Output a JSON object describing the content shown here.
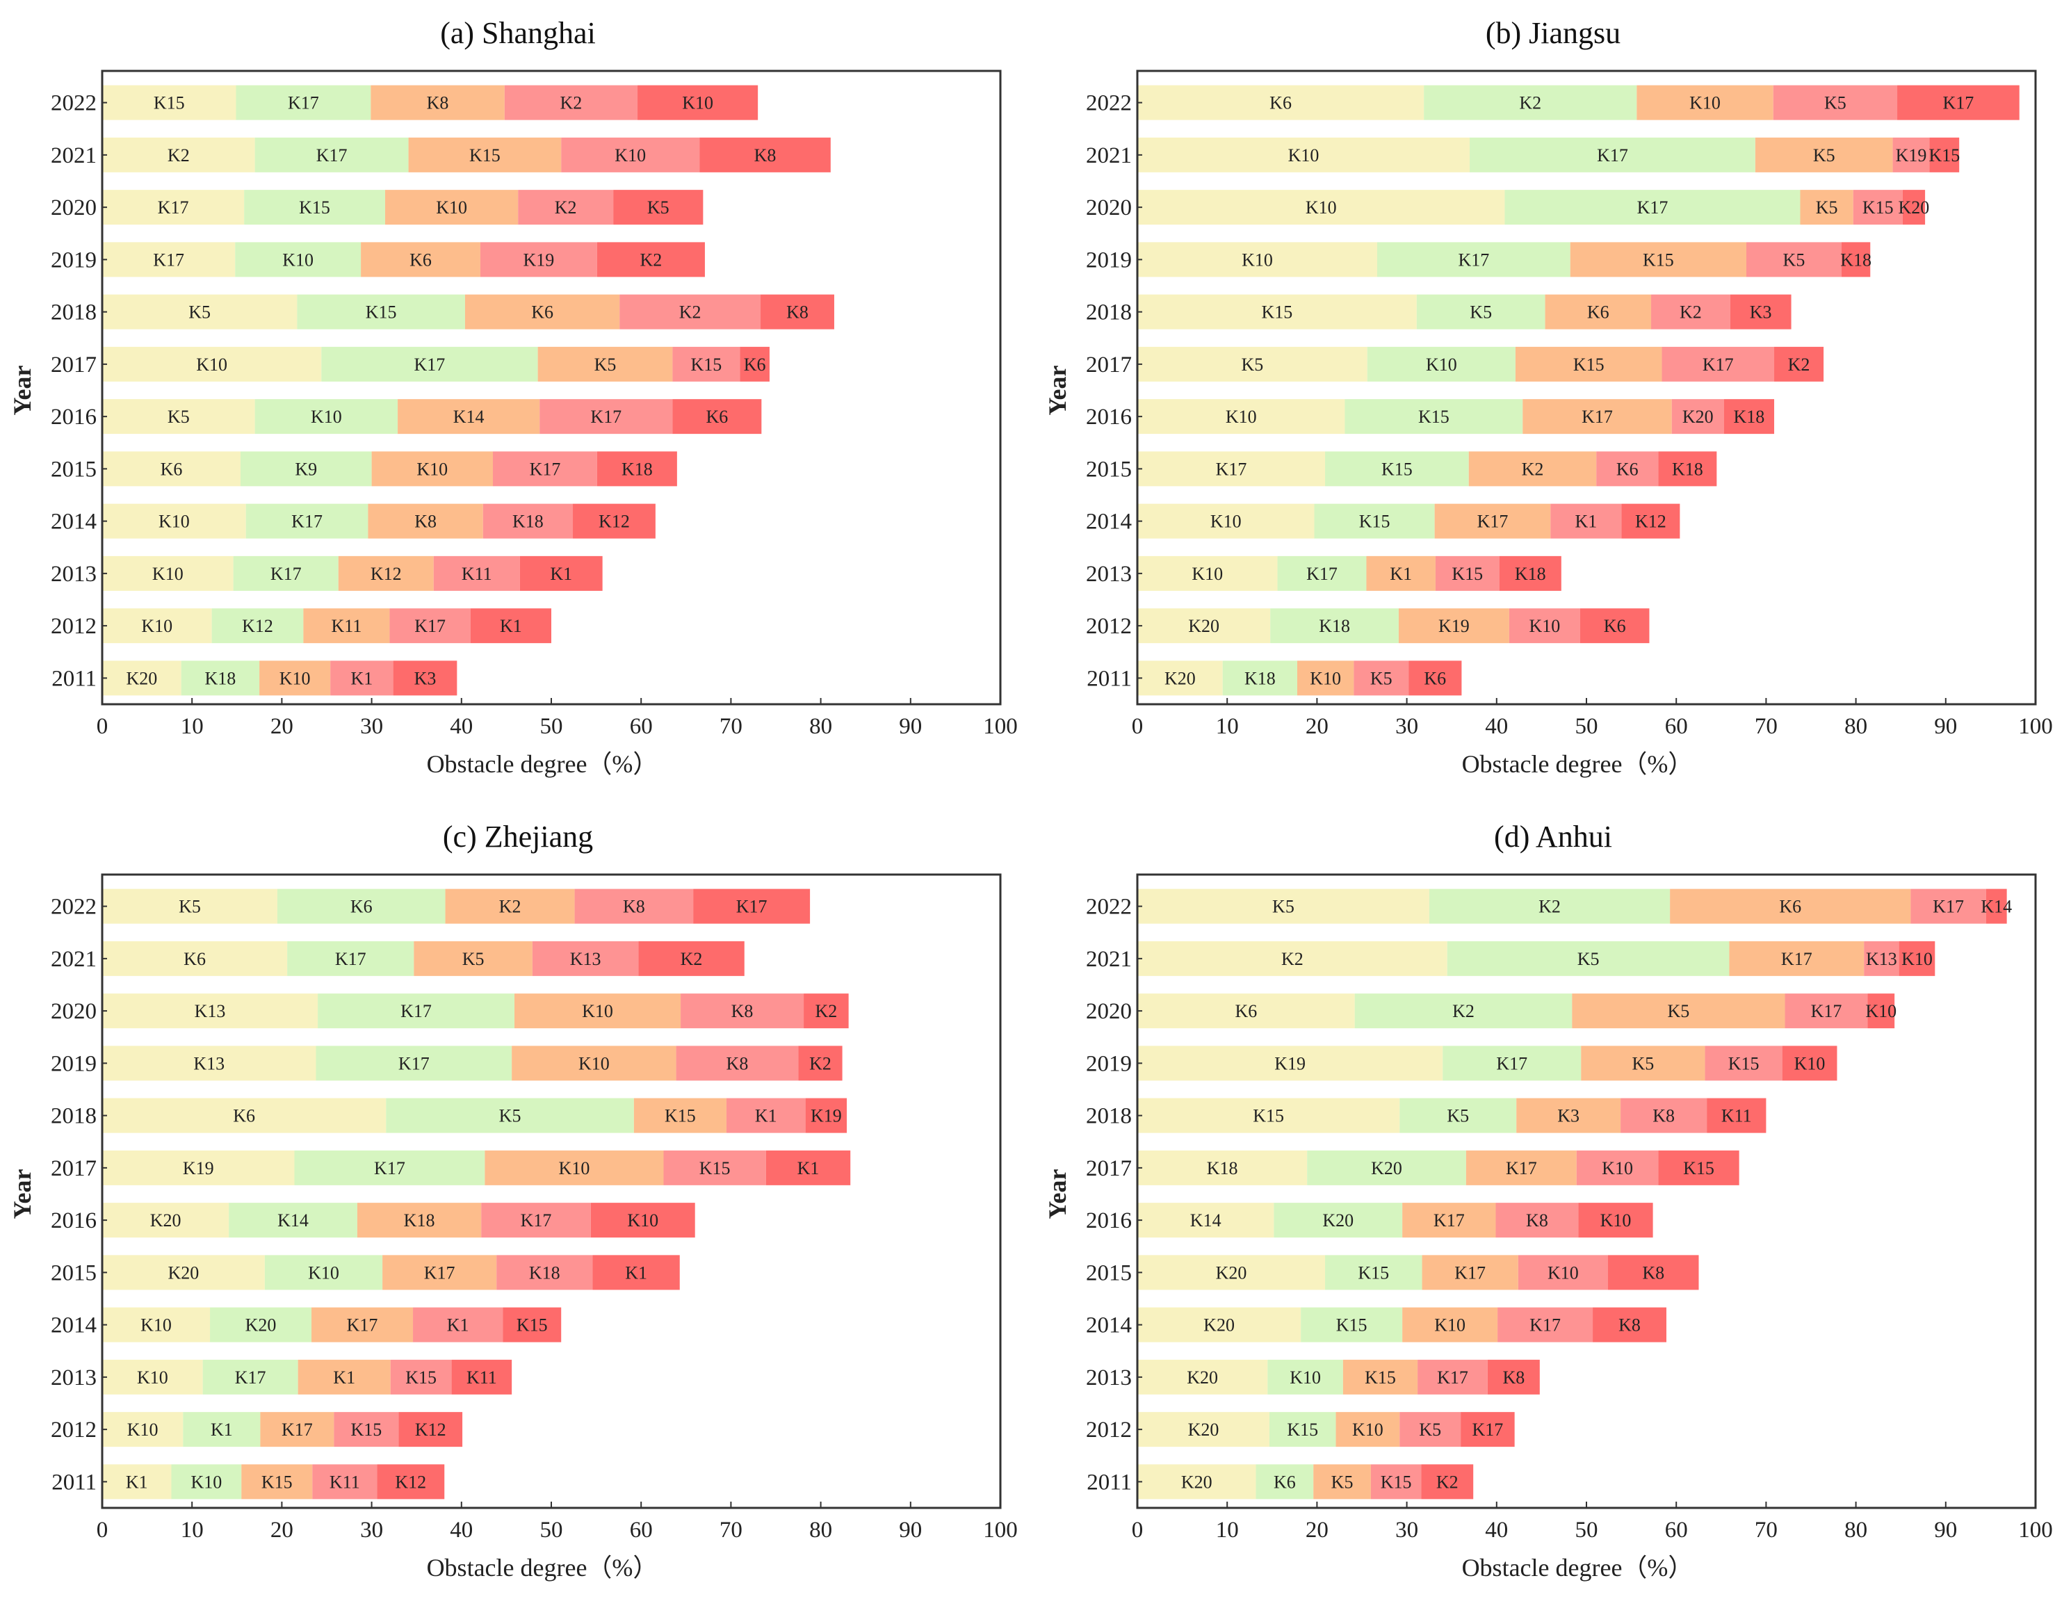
{
  "colors": [
    "#F8F2C0",
    "#D6F5C0",
    "#FDBD8C",
    "#FE9393",
    "#FE6B6B"
  ],
  "chart_data": [
    {
      "type": "bar",
      "orientation": "horizontal-stacked",
      "title": "(a) Shanghai",
      "xlabel": "Obstacle degree（%）",
      "ylabel": "Year",
      "xlim": [
        0,
        100
      ],
      "xticks": [
        0,
        10,
        20,
        30,
        40,
        50,
        60,
        70,
        80,
        90,
        100
      ],
      "bars": [
        {
          "year": "2022",
          "labels": [
            "K15",
            "K17",
            "K8",
            "K2",
            "K10"
          ],
          "values": [
            14.9,
            15.0,
            14.9,
            14.8,
            13.4
          ]
        },
        {
          "year": "2021",
          "labels": [
            "K2",
            "K17",
            "K15",
            "K10",
            "K8"
          ],
          "values": [
            17.0,
            17.1,
            17.0,
            15.4,
            14.6
          ]
        },
        {
          "year": "2020",
          "labels": [
            "K17",
            "K15",
            "K10",
            "K2",
            "K5"
          ],
          "values": [
            15.8,
            15.7,
            14.8,
            10.6,
            10.0
          ]
        },
        {
          "year": "2019",
          "labels": [
            "K17",
            "K10",
            "K6",
            "K19",
            "K2"
          ],
          "values": [
            14.8,
            14.0,
            13.3,
            13.0,
            12.0
          ]
        },
        {
          "year": "2018",
          "labels": [
            "K5",
            "K15",
            "K6",
            "K2",
            "K8"
          ],
          "values": [
            21.7,
            18.7,
            17.2,
            15.7,
            8.2
          ]
        },
        {
          "year": "2017",
          "labels": [
            "K10",
            "K17",
            "K5",
            "K15",
            "K6"
          ],
          "values": [
            24.4,
            24.1,
            15.0,
            7.5,
            3.3
          ]
        },
        {
          "year": "2016",
          "labels": [
            "K5",
            "K10",
            "K14",
            "K17",
            "K6"
          ],
          "values": [
            17.0,
            15.9,
            15.8,
            14.8,
            9.9
          ]
        },
        {
          "year": "2015",
          "labels": [
            "K6",
            "K9",
            "K10",
            "K17",
            "K18"
          ],
          "values": [
            15.4,
            14.6,
            13.5,
            11.6,
            8.9
          ]
        },
        {
          "year": "2014",
          "labels": [
            "K10",
            "K17",
            "K8",
            "K18",
            "K12"
          ],
          "values": [
            16.0,
            13.6,
            12.8,
            10.0,
            9.2
          ]
        },
        {
          "year": "2013",
          "labels": [
            "K10",
            "K17",
            "K12",
            "K11",
            "K1"
          ],
          "values": [
            14.6,
            11.7,
            10.6,
            9.6,
            9.2
          ]
        },
        {
          "year": "2012",
          "labels": [
            "K10",
            "K12",
            "K11",
            "K17",
            "K1"
          ],
          "values": [
            12.2,
            10.2,
            9.6,
            9.0,
            9.0
          ]
        },
        {
          "year": "2011",
          "labels": [
            "K20",
            "K18",
            "K10",
            "K1",
            "K3"
          ],
          "values": [
            8.8,
            8.7,
            7.9,
            7.0,
            7.1
          ]
        }
      ]
    },
    {
      "type": "bar",
      "orientation": "horizontal-stacked",
      "title": "(b) Jiangsu",
      "xlabel": "Obstacle degree（%）",
      "ylabel": "Year",
      "xlim": [
        0,
        100
      ],
      "xticks": [
        0,
        10,
        20,
        30,
        40,
        50,
        60,
        70,
        80,
        90,
        100
      ],
      "bars": [
        {
          "year": "2022",
          "labels": [
            "K6",
            "K2",
            "K10",
            "K5",
            "K17"
          ],
          "values": [
            31.9,
            23.7,
            15.2,
            13.8,
            13.6
          ]
        },
        {
          "year": "2021",
          "labels": [
            "K10",
            "K17",
            "K5",
            "K19",
            "K15"
          ],
          "values": [
            37.0,
            31.8,
            15.3,
            4.1,
            3.3
          ]
        },
        {
          "year": "2020",
          "labels": [
            "K10",
            "K17",
            "K5",
            "K15",
            "K20"
          ],
          "values": [
            40.9,
            32.9,
            5.9,
            5.5,
            2.5
          ]
        },
        {
          "year": "2019",
          "labels": [
            "K10",
            "K17",
            "K15",
            "K5",
            "K18"
          ],
          "values": [
            26.7,
            21.5,
            19.6,
            10.6,
            3.2
          ]
        },
        {
          "year": "2018",
          "labels": [
            "K15",
            "K5",
            "K6",
            "K2",
            "K3"
          ],
          "values": [
            31.1,
            14.3,
            11.8,
            8.8,
            6.8
          ]
        },
        {
          "year": "2017",
          "labels": [
            "K5",
            "K10",
            "K15",
            "K17",
            "K2"
          ],
          "values": [
            25.6,
            16.5,
            16.3,
            12.5,
            5.5
          ]
        },
        {
          "year": "2016",
          "labels": [
            "K10",
            "K15",
            "K17",
            "K20",
            "K18"
          ],
          "values": [
            23.1,
            19.8,
            16.6,
            5.8,
            5.6
          ]
        },
        {
          "year": "2015",
          "labels": [
            "K17",
            "K15",
            "K2",
            "K6",
            "K18"
          ],
          "values": [
            20.9,
            16.0,
            14.2,
            6.9,
            6.5
          ]
        },
        {
          "year": "2014",
          "labels": [
            "K10",
            "K15",
            "K17",
            "K1",
            "K12"
          ],
          "values": [
            19.7,
            13.4,
            12.9,
            7.9,
            6.5
          ]
        },
        {
          "year": "2013",
          "labels": [
            "K10",
            "K17",
            "K1",
            "K15",
            "K18"
          ],
          "values": [
            15.6,
            9.9,
            7.7,
            7.1,
            6.9
          ]
        },
        {
          "year": "2012",
          "labels": [
            "K20",
            "K18",
            "K19",
            "K10",
            "K6"
          ],
          "values": [
            14.8,
            14.3,
            12.3,
            7.9,
            7.7
          ]
        },
        {
          "year": "2011",
          "labels": [
            "K20",
            "K18",
            "K10",
            "K5",
            "K6"
          ],
          "values": [
            9.5,
            8.3,
            6.3,
            6.1,
            5.9
          ]
        }
      ]
    },
    {
      "type": "bar",
      "orientation": "horizontal-stacked",
      "title": "(c) Zhejiang",
      "xlabel": "Obstacle degree（%）",
      "ylabel": "Year",
      "xlim": [
        0,
        100
      ],
      "xticks": [
        0,
        10,
        20,
        30,
        40,
        50,
        60,
        70,
        80,
        90,
        100
      ],
      "bars": [
        {
          "year": "2022",
          "labels": [
            "K5",
            "K6",
            "K2",
            "K8",
            "K17"
          ],
          "values": [
            19.5,
            18.7,
            14.4,
            13.2,
            13.0
          ]
        },
        {
          "year": "2021",
          "labels": [
            "K6",
            "K17",
            "K5",
            "K13",
            "K2"
          ],
          "values": [
            20.6,
            14.1,
            13.2,
            11.8,
            11.8
          ]
        },
        {
          "year": "2020",
          "labels": [
            "K13",
            "K17",
            "K10",
            "K8",
            "K2"
          ],
          "values": [
            24.0,
            21.9,
            18.5,
            13.7,
            5.0
          ]
        },
        {
          "year": "2019",
          "labels": [
            "K13",
            "K17",
            "K10",
            "K8",
            "K2"
          ],
          "values": [
            23.8,
            21.8,
            18.3,
            13.6,
            4.9
          ]
        },
        {
          "year": "2018",
          "labels": [
            "K6",
            "K5",
            "K15",
            "K1",
            "K19"
          ],
          "values": [
            31.6,
            27.6,
            10.3,
            8.8,
            4.6
          ]
        },
        {
          "year": "2017",
          "labels": [
            "K19",
            "K17",
            "K10",
            "K15",
            "K1"
          ],
          "values": [
            21.4,
            21.2,
            19.9,
            11.4,
            9.4
          ]
        },
        {
          "year": "2016",
          "labels": [
            "K20",
            "K14",
            "K18",
            "K17",
            "K10"
          ],
          "values": [
            14.1,
            14.3,
            13.8,
            12.2,
            11.6
          ]
        },
        {
          "year": "2015",
          "labels": [
            "K20",
            "K10",
            "K17",
            "K18",
            "K1"
          ],
          "values": [
            18.1,
            13.1,
            12.7,
            10.7,
            9.7
          ]
        },
        {
          "year": "2014",
          "labels": [
            "K10",
            "K20",
            "K17",
            "K1",
            "K15"
          ],
          "values": [
            12.0,
            11.3,
            11.3,
            10.0,
            6.5
          ]
        },
        {
          "year": "2013",
          "labels": [
            "K10",
            "K17",
            "K1",
            "K15",
            "K11"
          ],
          "values": [
            11.2,
            10.6,
            10.3,
            6.8,
            6.7
          ]
        },
        {
          "year": "2012",
          "labels": [
            "K10",
            "K1",
            "K17",
            "K15",
            "K12"
          ],
          "values": [
            9.0,
            8.6,
            8.2,
            7.2,
            7.1
          ]
        },
        {
          "year": "2011",
          "labels": [
            "K1",
            "K10",
            "K15",
            "K11",
            "K12"
          ],
          "values": [
            7.7,
            7.8,
            7.9,
            7.2,
            7.5
          ]
        }
      ]
    },
    {
      "type": "bar",
      "orientation": "horizontal-stacked",
      "title": "(d) Anhui",
      "xlabel": "Obstacle degree（%）",
      "ylabel": "Year",
      "xlim": [
        0,
        100
      ],
      "xticks": [
        0,
        10,
        20,
        30,
        40,
        50,
        60,
        70,
        80,
        90,
        100
      ],
      "bars": [
        {
          "year": "2022",
          "labels": [
            "K5",
            "K2",
            "K6",
            "K17",
            "K14"
          ],
          "values": [
            32.5,
            26.8,
            26.8,
            8.4,
            2.3
          ]
        },
        {
          "year": "2021",
          "labels": [
            "K2",
            "K5",
            "K17",
            "K13",
            "K10"
          ],
          "values": [
            34.5,
            31.4,
            15.0,
            3.9,
            4.0
          ]
        },
        {
          "year": "2020",
          "labels": [
            "K6",
            "K2",
            "K5",
            "K17",
            "K10"
          ],
          "values": [
            24.2,
            24.2,
            23.7,
            9.2,
            3.0
          ]
        },
        {
          "year": "2019",
          "labels": [
            "K19",
            "K17",
            "K5",
            "K15",
            "K10"
          ],
          "values": [
            34.0,
            15.4,
            13.8,
            8.6,
            6.1
          ]
        },
        {
          "year": "2018",
          "labels": [
            "K15",
            "K5",
            "K3",
            "K8",
            "K11"
          ],
          "values": [
            29.2,
            13.0,
            11.6,
            9.6,
            6.6
          ]
        },
        {
          "year": "2017",
          "labels": [
            "K18",
            "K20",
            "K17",
            "K10",
            "K15"
          ],
          "values": [
            18.9,
            17.7,
            12.3,
            9.1,
            9.0
          ]
        },
        {
          "year": "2016",
          "labels": [
            "K14",
            "K20",
            "K17",
            "K8",
            "K10"
          ],
          "values": [
            15.2,
            14.3,
            10.4,
            9.2,
            8.3
          ]
        },
        {
          "year": "2015",
          "labels": [
            "K20",
            "K15",
            "K17",
            "K10",
            "K8"
          ],
          "values": [
            20.9,
            10.8,
            10.7,
            10.0,
            10.1
          ]
        },
        {
          "year": "2014",
          "labels": [
            "K20",
            "K15",
            "K10",
            "K17",
            "K8"
          ],
          "values": [
            18.2,
            11.3,
            10.6,
            10.6,
            8.2
          ]
        },
        {
          "year": "2013",
          "labels": [
            "K20",
            "K10",
            "K15",
            "K17",
            "K8"
          ],
          "values": [
            14.5,
            8.4,
            8.3,
            7.8,
            5.8
          ]
        },
        {
          "year": "2012",
          "labels": [
            "K20",
            "K15",
            "K10",
            "K5",
            "K17"
          ],
          "values": [
            14.7,
            7.4,
            7.1,
            6.8,
            6.0
          ]
        },
        {
          "year": "2011",
          "labels": [
            "K20",
            "K6",
            "K5",
            "K15",
            "K2"
          ],
          "values": [
            13.2,
            6.4,
            6.4,
            5.6,
            5.8
          ]
        }
      ]
    }
  ]
}
